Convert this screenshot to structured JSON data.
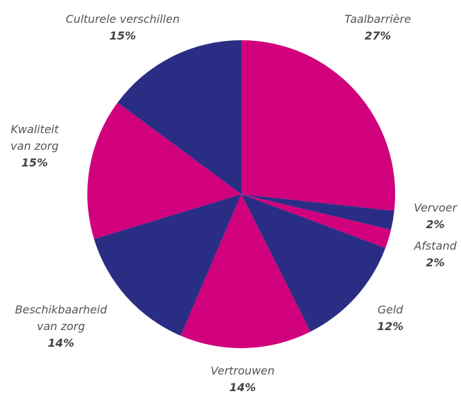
{
  "chart_data": {
    "type": "pie",
    "categories": [
      "Taalbarrière",
      "Vervoer",
      "Afstand",
      "Geld",
      "Vertrouwen",
      "Beschikbaarheid van zorg",
      "Kwaliteit van zorg",
      "Culturele verschillen"
    ],
    "values": [
      27,
      2,
      2,
      12,
      14,
      14,
      15,
      15
    ],
    "value_labels": [
      "27%",
      "2%",
      "2%",
      "12%",
      "14%",
      "14%",
      "15%",
      "15%"
    ],
    "colors": [
      "#d1007d",
      "#2a2d84",
      "#d1007d",
      "#2a2d84",
      "#d1007d",
      "#2a2d84",
      "#d1007d",
      "#2a2d84"
    ]
  }
}
